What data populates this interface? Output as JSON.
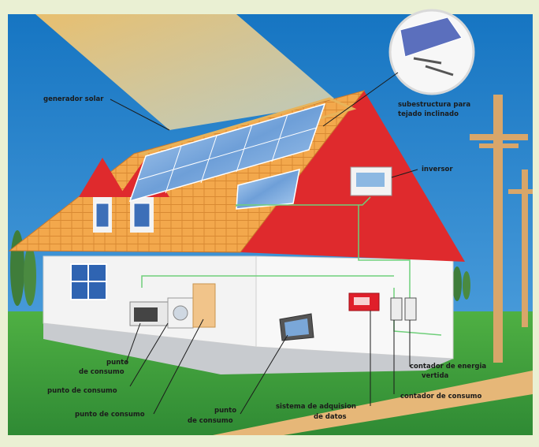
{
  "labels": {
    "generador_solar": "generador solar",
    "subestructura_line1": "subestructura para",
    "subestructura_line2": "tejado inclinado",
    "inversor": "inversor",
    "punto_consumo_1_line1": "punto",
    "punto_consumo_1_line2": "de consumo",
    "punto_consumo_2": "punto de consumo",
    "punto_consumo_3": "punto de consumo",
    "punto_consumo_4_line1": "punto",
    "punto_consumo_4_line2": "de consumo",
    "sistema_line1": "sistema de adquision",
    "sistema_line2": "de datos",
    "contador_energia_line1": "contador de energia",
    "contador_energia_line2": "vertida",
    "contador_consumo": "contador de consumo"
  },
  "colors": {
    "sky": "#1f7fc8",
    "grass": "#3a9a3c",
    "roof_orange": "#f2a54a",
    "roof_red": "#e0262e",
    "wall": "#f4f4f4",
    "floor": "#c9ccd0",
    "pole": "#d9a86c",
    "panel": "#8fb8e8"
  }
}
